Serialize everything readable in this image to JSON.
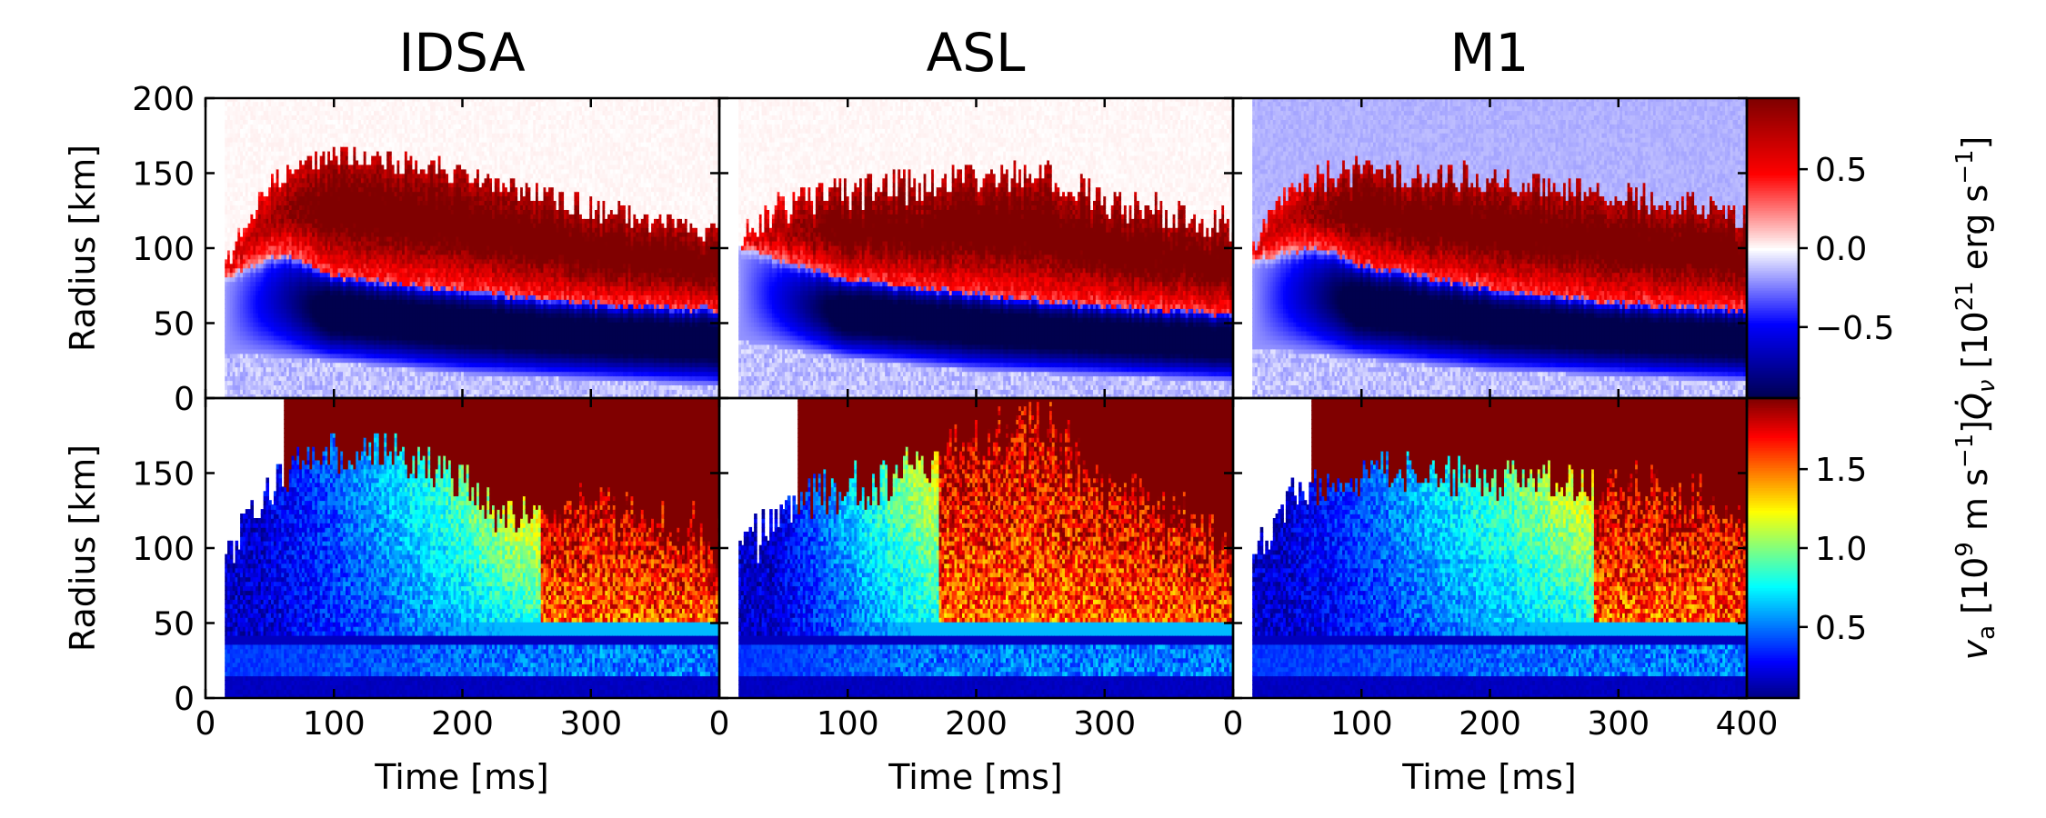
{
  "chart_data": {
    "type": "heatmap",
    "layout": "2 rows x 3 columns, shared axes",
    "column_titles": [
      "IDSA",
      "ASL",
      "M1"
    ],
    "x_axis": {
      "label": "Time [ms]",
      "range": [
        0,
        400
      ],
      "ticks": [
        0,
        100,
        200,
        300
      ],
      "last_ticks": [
        0,
        100,
        200,
        300,
        400
      ],
      "tick_labels": [
        "0",
        "100",
        "200",
        "300"
      ],
      "last_tick_labels": [
        "0",
        "100",
        "200",
        "300",
        "400"
      ]
    },
    "y_axis": {
      "label": "Radius [km]",
      "range": [
        0,
        200
      ],
      "top_ticks": [
        0,
        50,
        100,
        150,
        200
      ],
      "bottom_ticks": [
        0,
        50,
        100,
        150
      ],
      "top_tick_labels": [
        "0",
        "50",
        "100",
        "150",
        "200"
      ],
      "bottom_tick_labels": [
        "0",
        "50",
        "100",
        "150"
      ]
    },
    "rows": [
      {
        "quantity": "neutrino heating rate",
        "colormap": "seismic",
        "colorbar": {
          "ticks": [
            0.5,
            0.0,
            -0.5
          ],
          "tick_labels": [
            "0.5",
            "0.0",
            "−0.5"
          ],
          "range": [
            -0.95,
            0.95
          ],
          "label": "Q̇_ν [10^21 erg s^-1]"
        },
        "panels": [
          {
            "name": "IDSA",
            "data_start_ms": 15,
            "shock_radius_km": [
              [
                15,
                90
              ],
              [
                40,
                130
              ],
              [
                60,
                150
              ],
              [
                90,
                160
              ],
              [
                120,
                160
              ],
              [
                200,
                150
              ],
              [
                300,
                125
              ],
              [
                400,
                110
              ]
            ],
            "gain_radius_km": [
              [
                15,
                80
              ],
              [
                60,
                95
              ],
              [
                100,
                80
              ],
              [
                200,
                70
              ],
              [
                300,
                62
              ],
              [
                400,
                58
              ]
            ],
            "cooling_radius_km": [
              [
                15,
                55
              ],
              [
                100,
                48
              ],
              [
                200,
                40
              ],
              [
                400,
                32
              ]
            ],
            "shock_jitter_km": 8
          },
          {
            "name": "ASL",
            "data_start_ms": 15,
            "shock_radius_km": [
              [
                15,
                105
              ],
              [
                40,
                125
              ],
              [
                80,
                135
              ],
              [
                150,
                140
              ],
              [
                250,
                150
              ],
              [
                300,
                130
              ],
              [
                400,
                115
              ]
            ],
            "gain_radius_km": [
              [
                15,
                100
              ],
              [
                50,
                90
              ],
              [
                100,
                78
              ],
              [
                200,
                68
              ],
              [
                300,
                60
              ],
              [
                400,
                55
              ]
            ],
            "cooling_radius_km": [
              [
                15,
                62
              ],
              [
                100,
                50
              ],
              [
                200,
                42
              ],
              [
                400,
                35
              ]
            ],
            "shock_jitter_km": 12
          },
          {
            "name": "M1",
            "data_start_ms": 15,
            "shock_radius_km": [
              [
                15,
                100
              ],
              [
                40,
                135
              ],
              [
                80,
                150
              ],
              [
                120,
                150
              ],
              [
                200,
                145
              ],
              [
                300,
                135
              ],
              [
                400,
                120
              ]
            ],
            "gain_radius_km": [
              [
                15,
                90
              ],
              [
                60,
                100
              ],
              [
                110,
                85
              ],
              [
                200,
                72
              ],
              [
                300,
                62
              ],
              [
                400,
                58
              ]
            ],
            "cooling_radius_km": [
              [
                15,
                58
              ],
              [
                100,
                50
              ],
              [
                200,
                42
              ],
              [
                400,
                35
              ]
            ],
            "shock_jitter_km": 10
          }
        ]
      },
      {
        "quantity": "v_a",
        "colormap": "jet",
        "colorbar": {
          "ticks": [
            1.5,
            1.0,
            0.5
          ],
          "tick_labels": [
            "1.5",
            "1.0",
            "0.5"
          ],
          "range": [
            0.05,
            1.95
          ],
          "label": "v_a [10^9 m s^-1]"
        },
        "panels": [
          {
            "name": "IDSA",
            "data_start_ms": 15,
            "shock_radius_km": [
              [
                15,
                90
              ],
              [
                40,
                130
              ],
              [
                70,
                155
              ],
              [
                100,
                162
              ],
              [
                140,
                165
              ],
              [
                200,
                145
              ],
              [
                230,
                120
              ],
              [
                300,
                130
              ],
              [
                350,
                115
              ],
              [
                400,
                105
              ]
            ],
            "transition_ms": 260,
            "shock_jitter_km": 14
          },
          {
            "name": "ASL",
            "data_start_ms": 15,
            "shock_radius_km": [
              [
                15,
                90
              ],
              [
                40,
                120
              ],
              [
                80,
                135
              ],
              [
                150,
                150
              ],
              [
                200,
                170
              ],
              [
                240,
                185
              ],
              [
                300,
                140
              ],
              [
                350,
                120
              ],
              [
                400,
                110
              ]
            ],
            "transition_ms": 170,
            "shock_jitter_km": 18
          },
          {
            "name": "M1",
            "data_start_ms": 15,
            "shock_radius_km": [
              [
                15,
                90
              ],
              [
                40,
                130
              ],
              [
                80,
                145
              ],
              [
                120,
                150
              ],
              [
                200,
                145
              ],
              [
                300,
                140
              ],
              [
                350,
                130
              ],
              [
                400,
                120
              ]
            ],
            "transition_ms": 280,
            "shock_jitter_km": 14
          }
        ]
      }
    ]
  },
  "text": {
    "title_idsa": "IDSA",
    "title_asl": "ASL",
    "title_m1": "M1",
    "ylabel_top": "Radius [km]",
    "ylabel_bottom": "Radius [km]",
    "xlabel_1": "Time [ms]",
    "xlabel_2": "Time [ms]",
    "xlabel_3": "Time [ms]",
    "cbar_label_top_main": "Q̇",
    "cbar_label_top_sub": "ν",
    "cbar_label_top_rest": " [10",
    "cbar_label_top_exp": "21",
    "cbar_label_top_tail": " erg s",
    "cbar_label_top_exp2": "−1",
    "cbar_label_top_end": "]",
    "cbar_label_bottom_main": "v",
    "cbar_label_bottom_sub": "a",
    "cbar_label_bottom_rest": " [10",
    "cbar_label_bottom_exp": "9",
    "cbar_label_bottom_tail": " m s",
    "cbar_label_bottom_exp2": "−1",
    "cbar_label_bottom_end": "]"
  }
}
